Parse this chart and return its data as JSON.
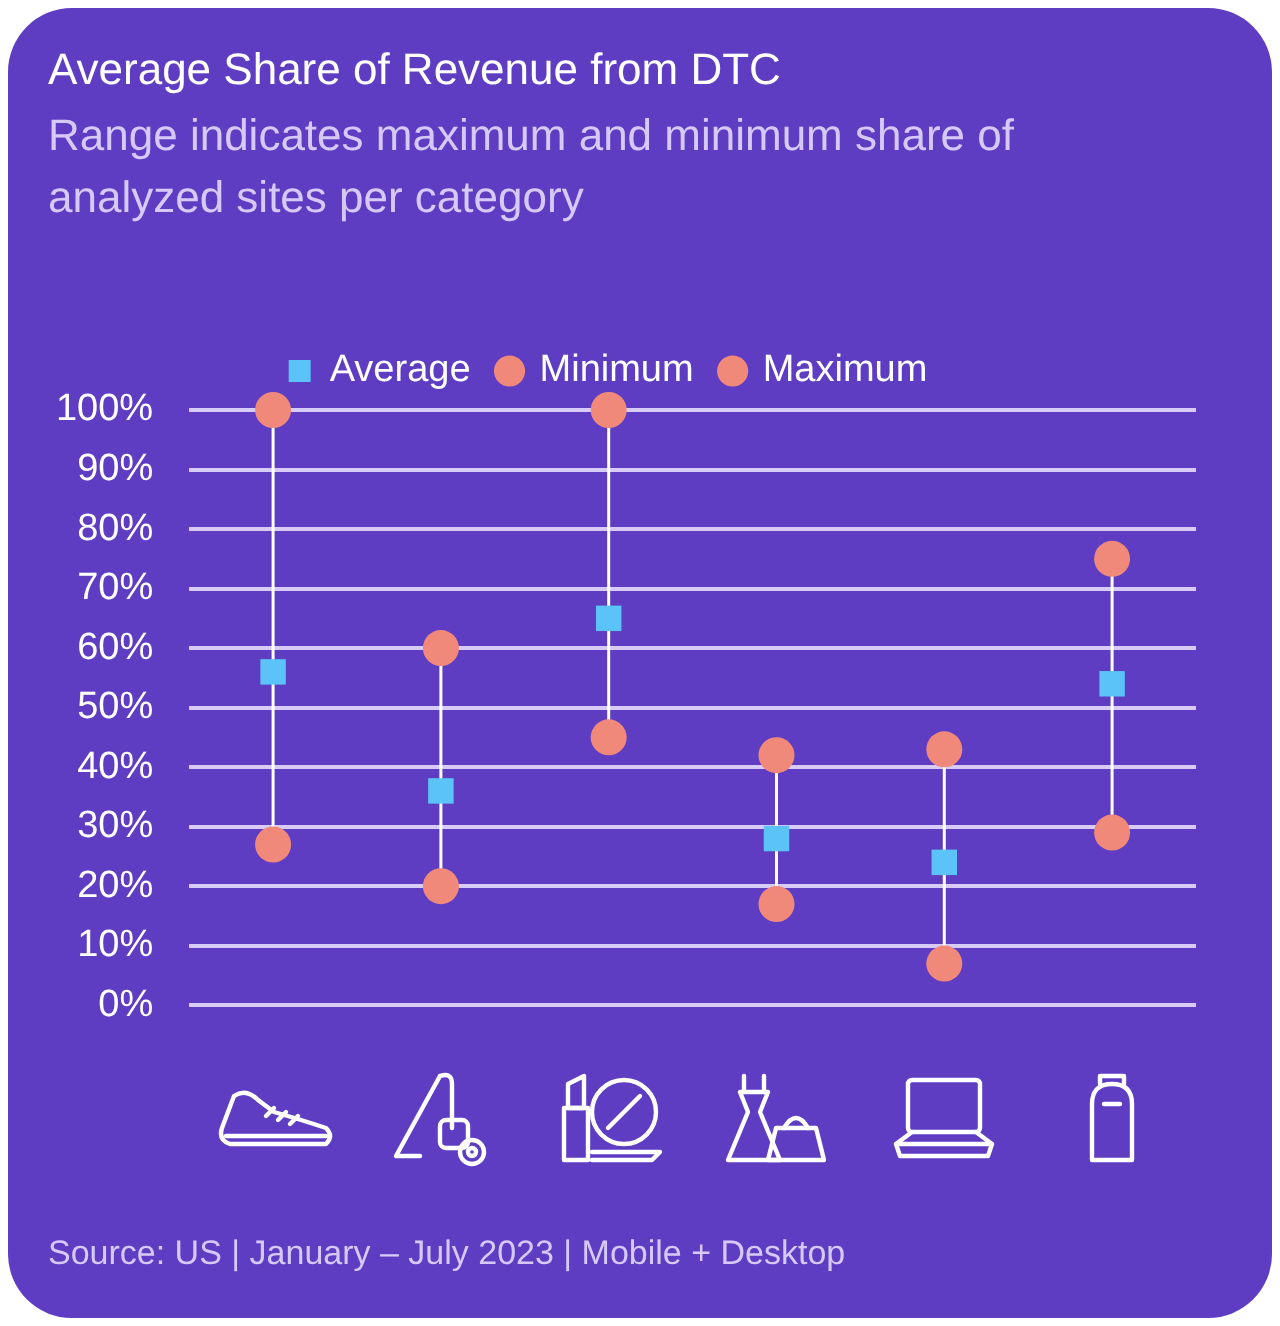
{
  "chart_data": {
    "type": "scatter",
    "title": "Average Share of Revenue from DTC",
    "subtitle": "Range indicates maximum and minimum share of analyzed sites per category",
    "categories": [
      null,
      null,
      null,
      null,
      null,
      null
    ],
    "series": [
      {
        "name": "Average",
        "color": "#5bc3f7",
        "marker": "square",
        "values": [
          56,
          36,
          65,
          28,
          24,
          54
        ]
      },
      {
        "name": "Minimum",
        "color": "#f0897a",
        "marker": "circle",
        "values": [
          27,
          20,
          45,
          17,
          7,
          29
        ]
      },
      {
        "name": "Maximum",
        "color": "#f0897a",
        "marker": "circle",
        "values": [
          100,
          60,
          100,
          42,
          43,
          75
        ]
      }
    ],
    "ylim": [
      0,
      100
    ],
    "yticks": [
      {
        "value": 0,
        "label": "0%"
      },
      {
        "value": 10,
        "label": "10%"
      },
      {
        "value": 20,
        "label": "20%"
      },
      {
        "value": 30,
        "label": "30%"
      },
      {
        "value": 40,
        "label": "40%"
      },
      {
        "value": 50,
        "label": "50%"
      },
      {
        "value": 60,
        "label": "60%"
      },
      {
        "value": 70,
        "label": "70%"
      },
      {
        "value": 80,
        "label": "80%"
      },
      {
        "value": 90,
        "label": "90%"
      },
      {
        "value": 100,
        "label": "100%"
      }
    ],
    "grid": "y",
    "legend": "top",
    "annotations": [
      "Source: US | January – July 2023 | Mobile + Desktop"
    ]
  }
}
